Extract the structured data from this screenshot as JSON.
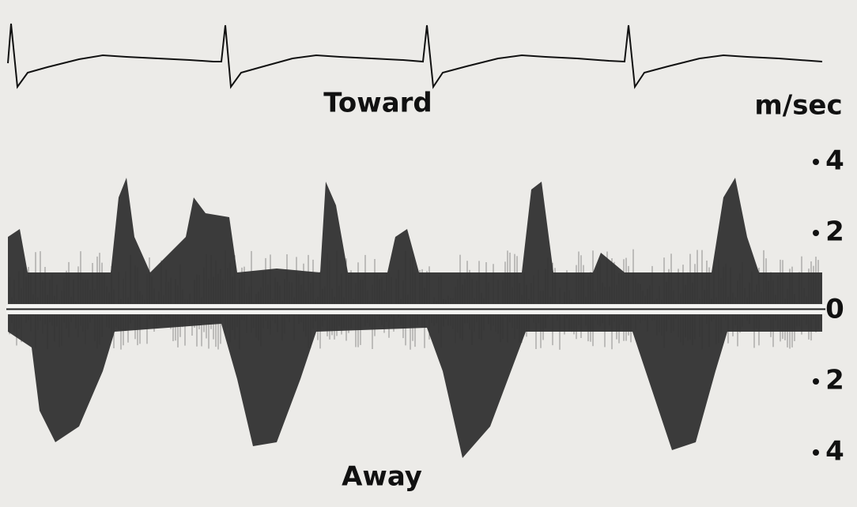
{
  "figure": {
    "labels": {
      "toward": "Toward",
      "away": "Away"
    },
    "scale": {
      "unit": "m/sec",
      "ticks": [
        "4",
        "2",
        "0",
        "2",
        "4"
      ]
    }
  }
}
